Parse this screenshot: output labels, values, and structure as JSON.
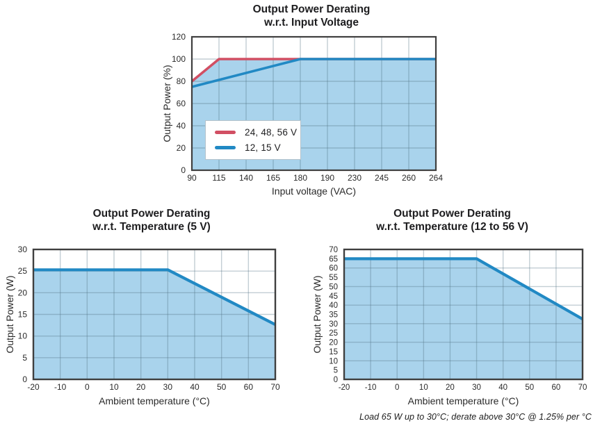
{
  "colors": {
    "red_series": "#d14f63",
    "blue_series": "#2189c4",
    "area_fill": "#a9d3ec",
    "grid": "#506e82",
    "plot_border": "#3f3f3f",
    "text": "#1d1d1f",
    "legend_border": "#b4c2cb"
  },
  "chart_data": [
    {
      "type": "line",
      "title": "Output Power Derating",
      "subtitle": "w.r.t. Input Voltage",
      "xlabel": "Input voltage (VAC)",
      "ylabel": "Output Power (%)",
      "x_scale": "ordinal",
      "x_ticks": [
        90,
        115,
        140,
        165,
        180,
        190,
        230,
        245,
        260,
        264
      ],
      "ylim": [
        0,
        120
      ],
      "y_label_step": 20,
      "y_grid_step": 20,
      "grid": true,
      "legend_position": "inside-left",
      "series": [
        {
          "name": "24, 48, 56 V",
          "color": "red_series",
          "fill": true,
          "points": [
            [
              90,
              80
            ],
            [
              115,
              100
            ],
            [
              264,
              100
            ]
          ]
        },
        {
          "name": "12, 15 V",
          "color": "blue_series",
          "fill": true,
          "points": [
            [
              90,
              75
            ],
            [
              180,
              100
            ],
            [
              264,
              100
            ]
          ]
        }
      ]
    },
    {
      "type": "line",
      "title": "Output Power Derating",
      "subtitle": "w.r.t. Temperature (5 V)",
      "xlabel": "Ambient temperature (°C)",
      "ylabel": "Output Power (W)",
      "x_scale": "linear",
      "x_ticks": [
        -20,
        -10,
        0,
        10,
        20,
        30,
        40,
        50,
        60,
        70
      ],
      "ylim": [
        0,
        30
      ],
      "y_label_step": 5,
      "y_grid_step": 5,
      "grid": true,
      "series": [
        {
          "name": "5 V",
          "color": "blue_series",
          "fill": true,
          "points": [
            [
              -20,
              25.3
            ],
            [
              30,
              25.3
            ],
            [
              70,
              12.65
            ]
          ]
        }
      ]
    },
    {
      "type": "line",
      "title": "Output Power Derating",
      "subtitle": "w.r.t. Temperature (12 to 56 V)",
      "xlabel": "Ambient temperature (°C)",
      "ylabel": "Output Power (W)",
      "x_scale": "linear",
      "x_ticks": [
        -20,
        -10,
        0,
        10,
        20,
        30,
        40,
        50,
        60,
        70
      ],
      "ylim": [
        0,
        70
      ],
      "y_label_step": 5,
      "y_grid_step": 10,
      "grid": true,
      "series": [
        {
          "name": "12 to 56 V",
          "color": "blue_series",
          "fill": true,
          "points": [
            [
              -20,
              65
            ],
            [
              30,
              65
            ],
            [
              70,
              32.5
            ]
          ]
        }
      ],
      "footnote": "Load 65 W up to 30°C; derate above 30°C @ 1.25% per °C"
    }
  ]
}
